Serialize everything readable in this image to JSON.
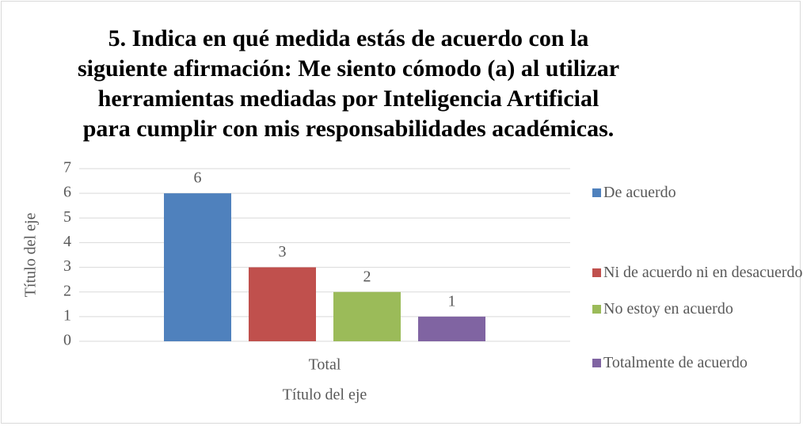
{
  "chart_data": {
    "type": "bar",
    "title": "5. Indica en qué medida estás de acuerdo con la siguiente afirmación: Me siento cómodo (a) al utilizar herramientas mediadas por Inteligencia Artificial para cumplir con mis responsabilidades académicas.",
    "categories": [
      "Total"
    ],
    "series": [
      {
        "name": "De acuerdo",
        "color": "#4f81bd",
        "values": [
          6
        ]
      },
      {
        "name": "Ni de acuerdo ni en desacuerdo",
        "color": "#c0504d",
        "values": [
          3
        ]
      },
      {
        "name": "No estoy en acuerdo",
        "color": "#9bbb59",
        "values": [
          2
        ]
      },
      {
        "name": "Totalmente de acuerdo",
        "color": "#8064a2",
        "values": [
          1
        ]
      }
    ],
    "x_label": "Título del eje",
    "y_label": "Título del eje",
    "ylim": [
      0,
      7
    ],
    "yticks": [
      0,
      1,
      2,
      3,
      4,
      5,
      6,
      7
    ],
    "grid": true,
    "legend": "right"
  }
}
